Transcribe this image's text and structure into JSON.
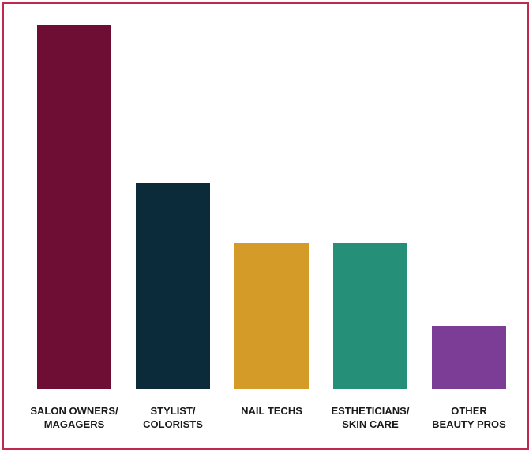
{
  "chart_data": {
    "type": "bar",
    "categories": [
      "SALON OWNERS/\nMAGAGERS",
      "STYLIST/\nCOLORISTS",
      "NAIL TECHS",
      "ESTHETICIANS/\nSKIN CARE",
      "OTHER\nBEAUTY PROS"
    ],
    "values": [
      46,
      26,
      18.5,
      18.5,
      8
    ],
    "colors": [
      "#6e0e35",
      "#0b2a3a",
      "#d49b28",
      "#268f77",
      "#7c3d96"
    ],
    "frame_color": "#c0284e",
    "title": "",
    "xlabel": "",
    "ylabel": "",
    "ylim": [
      0,
      46
    ],
    "grid": false,
    "legend": "none"
  }
}
